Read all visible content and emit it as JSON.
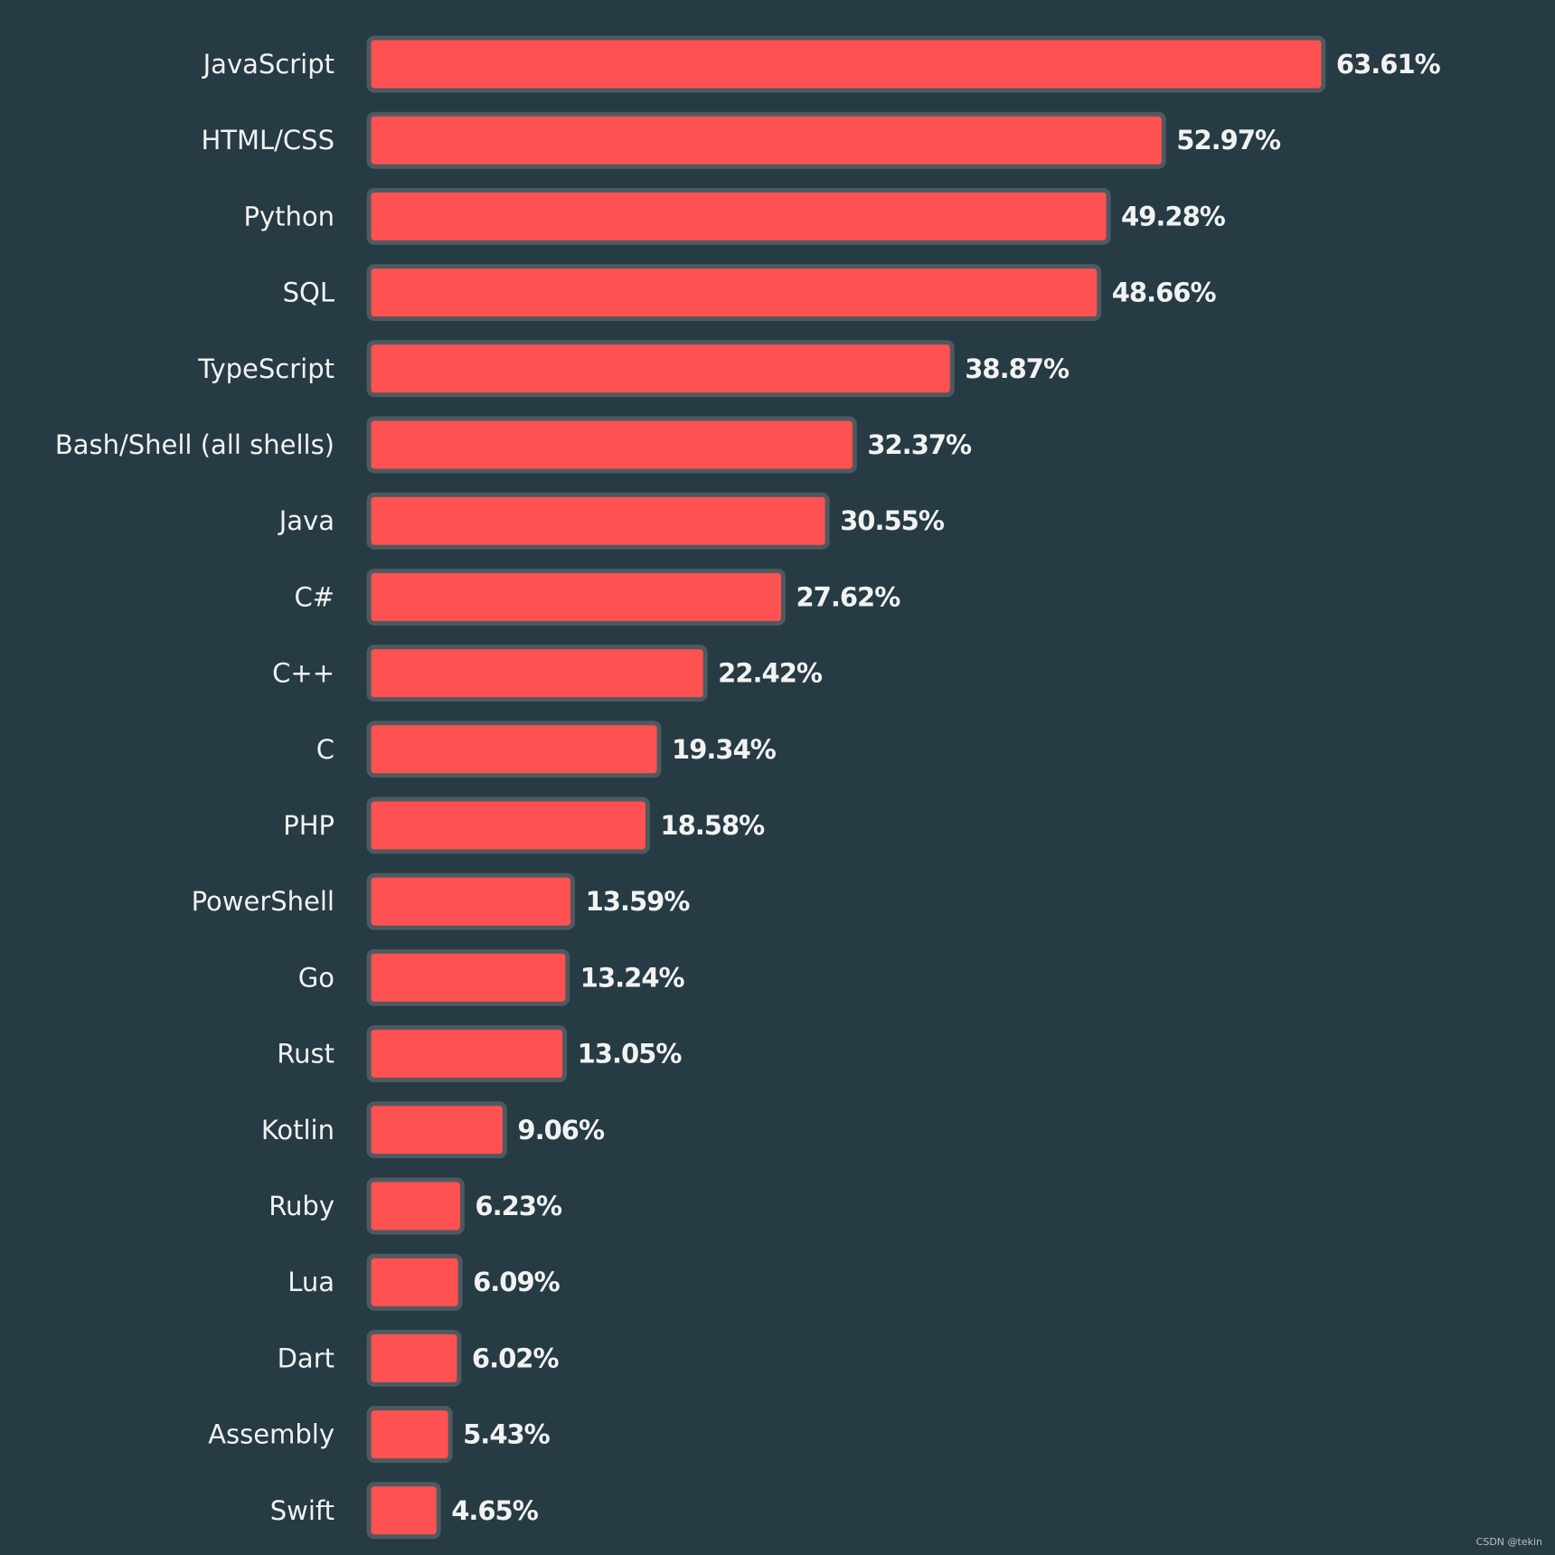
{
  "chart_data": {
    "type": "bar",
    "orientation": "horizontal",
    "title": "",
    "xlabel": "",
    "ylabel": "",
    "xlim": [
      0,
      70
    ],
    "grid": false,
    "legend": "none",
    "unit": "%",
    "bar_color": "#fe5151",
    "bar_border_color": "#4e5a60",
    "background_color": "#263b43",
    "text_color": "#f2f2f2",
    "categories": [
      "JavaScript",
      "HTML/CSS",
      "Python",
      "SQL",
      "TypeScript",
      "Bash/Shell (all shells)",
      "Java",
      "C#",
      "C++",
      "C",
      "PHP",
      "PowerShell",
      "Go",
      "Rust",
      "Kotlin",
      "Ruby",
      "Lua",
      "Dart",
      "Assembly",
      "Swift"
    ],
    "values": [
      63.61,
      52.97,
      49.28,
      48.66,
      38.87,
      32.37,
      30.55,
      27.62,
      22.42,
      19.34,
      18.58,
      13.59,
      13.24,
      13.05,
      9.06,
      6.23,
      6.09,
      6.02,
      5.43,
      4.65
    ],
    "value_labels": [
      "63.61%",
      "52.97%",
      "49.28%",
      "48.66%",
      "38.87%",
      "32.37%",
      "30.55%",
      "27.62%",
      "22.42%",
      "19.34%",
      "18.58%",
      "13.59%",
      "13.24%",
      "13.05%",
      "9.06%",
      "6.23%",
      "6.09%",
      "6.02%",
      "5.43%",
      "4.65%"
    ]
  },
  "watermark": "CSDN @tekin"
}
